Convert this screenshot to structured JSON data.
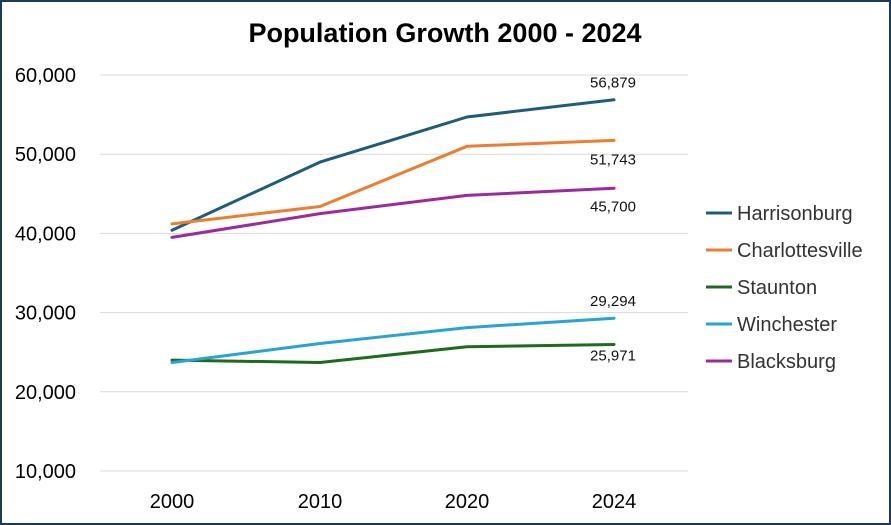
{
  "chart_data": {
    "type": "line",
    "title": "Population Growth 2000 - 2024",
    "xlabel": "",
    "ylabel": "",
    "categories": [
      "2000",
      "2010",
      "2020",
      "2024"
    ],
    "ylim": [
      10000,
      60000
    ],
    "yticks": [
      10000,
      20000,
      30000,
      40000,
      50000,
      60000
    ],
    "ytick_labels": [
      "10,000",
      "20,000",
      "30,000",
      "40,000",
      "50,000",
      "60,000"
    ],
    "grid": true,
    "legend_position": "right",
    "series": [
      {
        "name": "Harrisonburg",
        "color": "#1f5c7a",
        "values": [
          40400,
          49000,
          54700,
          56879
        ],
        "end_label": "56,879"
      },
      {
        "name": "Charlottesville",
        "color": "#ed7d31",
        "values": [
          41200,
          43400,
          51000,
          51743
        ],
        "end_label": "51,743"
      },
      {
        "name": "Staunton",
        "color": "#1e6b1e",
        "values": [
          24000,
          23700,
          25700,
          25971
        ],
        "end_label": "25,971"
      },
      {
        "name": "Winchester",
        "color": "#27a3d4",
        "values": [
          23700,
          26100,
          28100,
          29294
        ],
        "end_label": "29,294"
      },
      {
        "name": "Blacksburg",
        "color": "#9b2a9b",
        "values": [
          39500,
          42500,
          44800,
          45700
        ],
        "end_label": "45,700"
      }
    ]
  }
}
